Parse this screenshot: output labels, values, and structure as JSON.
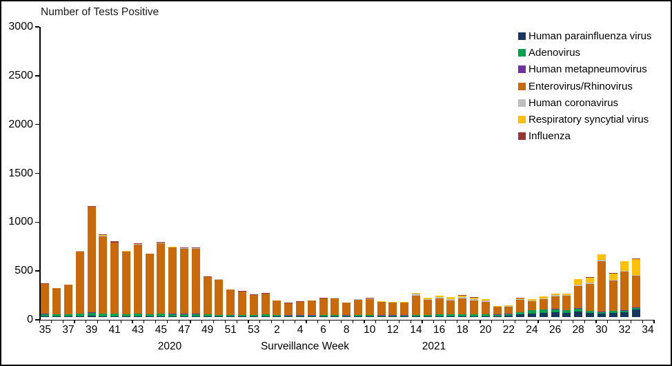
{
  "chart_data": {
    "type": "bar",
    "stacked": true,
    "title": "Number of Tests Positive",
    "xlabel": "Surveillance Week",
    "year_labels": {
      "left": "2020",
      "right": "2021"
    },
    "ylim": [
      0,
      3000
    ],
    "y_ticks": [
      0,
      500,
      1000,
      1500,
      2000,
      2500,
      3000
    ],
    "grid": false,
    "legend_position": "top-right",
    "categories": [
      "35",
      "36",
      "37",
      "38",
      "39",
      "40",
      "41",
      "42",
      "43",
      "44",
      "45",
      "46",
      "47",
      "48",
      "49",
      "50",
      "51",
      "52",
      "53",
      "1",
      "2",
      "3",
      "4",
      "5",
      "6",
      "7",
      "8",
      "9",
      "10",
      "11",
      "12",
      "13",
      "14",
      "15",
      "16",
      "17",
      "18",
      "19",
      "20",
      "21",
      "22",
      "23",
      "24",
      "25",
      "26",
      "27",
      "28",
      "29",
      "30",
      "31",
      "32",
      "33"
    ],
    "x_tick_labels": [
      {
        "slot": 0,
        "label": "35"
      },
      {
        "slot": 2,
        "label": "37"
      },
      {
        "slot": 4,
        "label": "39"
      },
      {
        "slot": 6,
        "label": "41"
      },
      {
        "slot": 8,
        "label": "43"
      },
      {
        "slot": 10,
        "label": "45"
      },
      {
        "slot": 12,
        "label": "47"
      },
      {
        "slot": 14,
        "label": "49"
      },
      {
        "slot": 16,
        "label": "51"
      },
      {
        "slot": 18,
        "label": "53"
      },
      {
        "slot": 20,
        "label": "2"
      },
      {
        "slot": 22,
        "label": "4"
      },
      {
        "slot": 24,
        "label": "6"
      },
      {
        "slot": 26,
        "label": "8"
      },
      {
        "slot": 28,
        "label": "10"
      },
      {
        "slot": 30,
        "label": "12"
      },
      {
        "slot": 32,
        "label": "14"
      },
      {
        "slot": 34,
        "label": "16"
      },
      {
        "slot": 36,
        "label": "18"
      },
      {
        "slot": 38,
        "label": "20"
      },
      {
        "slot": 40,
        "label": "22"
      },
      {
        "slot": 42,
        "label": "24"
      },
      {
        "slot": 44,
        "label": "26"
      },
      {
        "slot": 46,
        "label": "28"
      },
      {
        "slot": 48,
        "label": "30"
      },
      {
        "slot": 50,
        "label": "32"
      },
      {
        "slot": 52,
        "label": "34"
      }
    ],
    "series": [
      {
        "name": "Human parainfluenza virus",
        "color": "#17375E",
        "values": [
          8,
          8,
          8,
          10,
          12,
          10,
          10,
          8,
          10,
          8,
          8,
          8,
          8,
          8,
          8,
          6,
          5,
          4,
          4,
          8,
          6,
          5,
          5,
          5,
          6,
          6,
          5,
          6,
          6,
          5,
          5,
          5,
          8,
          8,
          10,
          10,
          10,
          10,
          10,
          10,
          15,
          25,
          35,
          42,
          47,
          40,
          58,
          42,
          33,
          42,
          49,
          77
        ]
      },
      {
        "name": "Adenovirus",
        "color": "#00A14E",
        "values": [
          22,
          18,
          20,
          25,
          30,
          25,
          22,
          20,
          22,
          20,
          25,
          22,
          22,
          22,
          20,
          16,
          15,
          15,
          18,
          20,
          15,
          12,
          12,
          12,
          14,
          14,
          12,
          14,
          15,
          12,
          12,
          12,
          14,
          14,
          16,
          16,
          18,
          18,
          18,
          14,
          15,
          25,
          33,
          35,
          33,
          30,
          28,
          19,
          19,
          19,
          16,
          14
        ]
      },
      {
        "name": "Human metapneumovirus",
        "color": "#7030A0",
        "values": [
          3,
          2,
          3,
          3,
          4,
          3,
          4,
          3,
          4,
          3,
          5,
          3,
          4,
          3,
          3,
          2,
          2,
          2,
          2,
          2,
          2,
          2,
          2,
          2,
          2,
          2,
          2,
          2,
          2,
          2,
          2,
          2,
          2,
          2,
          2,
          2,
          2,
          2,
          2,
          2,
          2,
          2,
          2,
          2,
          3,
          3,
          6,
          3,
          3,
          3,
          3,
          9
        ]
      },
      {
        "name": "Enterovirus/Rhinovirus",
        "color": "#C86A0B",
        "values": [
          305,
          266,
          298,
          635,
          1080,
          790,
          725,
          640,
          705,
          615,
          718,
          677,
          668,
          669,
          377,
          360,
          258,
          240,
          202,
          210,
          143,
          122,
          137,
          147,
          168,
          171,
          126,
          156,
          161,
          133,
          128,
          127,
          195,
          150,
          162,
          144,
          160,
          139,
          128,
          77,
          74,
          123,
          94,
          106,
          128,
          146,
          223,
          276,
          518,
          312,
          398,
          325
        ]
      },
      {
        "name": "Human coronavirus",
        "color": "#BFBFBF",
        "values": [
          3,
          2,
          2,
          3,
          4,
          5,
          4,
          3,
          4,
          2,
          4,
          5,
          4,
          4,
          3,
          2,
          2,
          2,
          2,
          2,
          2,
          2,
          2,
          2,
          3,
          3,
          3,
          4,
          5,
          4,
          4,
          5,
          20,
          11,
          13,
          12,
          12,
          12,
          12,
          5,
          5,
          8,
          8,
          8,
          14,
          8,
          16,
          10,
          10,
          8,
          10,
          8
        ]
      },
      {
        "name": "Respiratory syncytial virus",
        "color": "#FFC000",
        "values": [
          0,
          0,
          0,
          0,
          0,
          8,
          0,
          4,
          0,
          0,
          0,
          3,
          0,
          0,
          0,
          0,
          0,
          0,
          0,
          0,
          0,
          0,
          0,
          0,
          0,
          2,
          0,
          2,
          5,
          3,
          3,
          3,
          8,
          10,
          15,
          18,
          20,
          18,
          12,
          6,
          8,
          10,
          12,
          20,
          14,
          12,
          54,
          55,
          56,
          63,
          94,
          158
        ]
      },
      {
        "name": "Influenza",
        "color": "#953735",
        "values": [
          4,
          4,
          4,
          4,
          5,
          4,
          10,
          2,
          10,
          2,
          10,
          2,
          4,
          4,
          4,
          4,
          3,
          2,
          2,
          3,
          2,
          2,
          2,
          2,
          2,
          2,
          2,
          1,
          1,
          1,
          1,
          1,
          3,
          2,
          2,
          3,
          3,
          6,
          3,
          1,
          1,
          2,
          1,
          2,
          1,
          1,
          5,
          5,
          6,
          3,
          5,
          9
        ]
      }
    ]
  }
}
